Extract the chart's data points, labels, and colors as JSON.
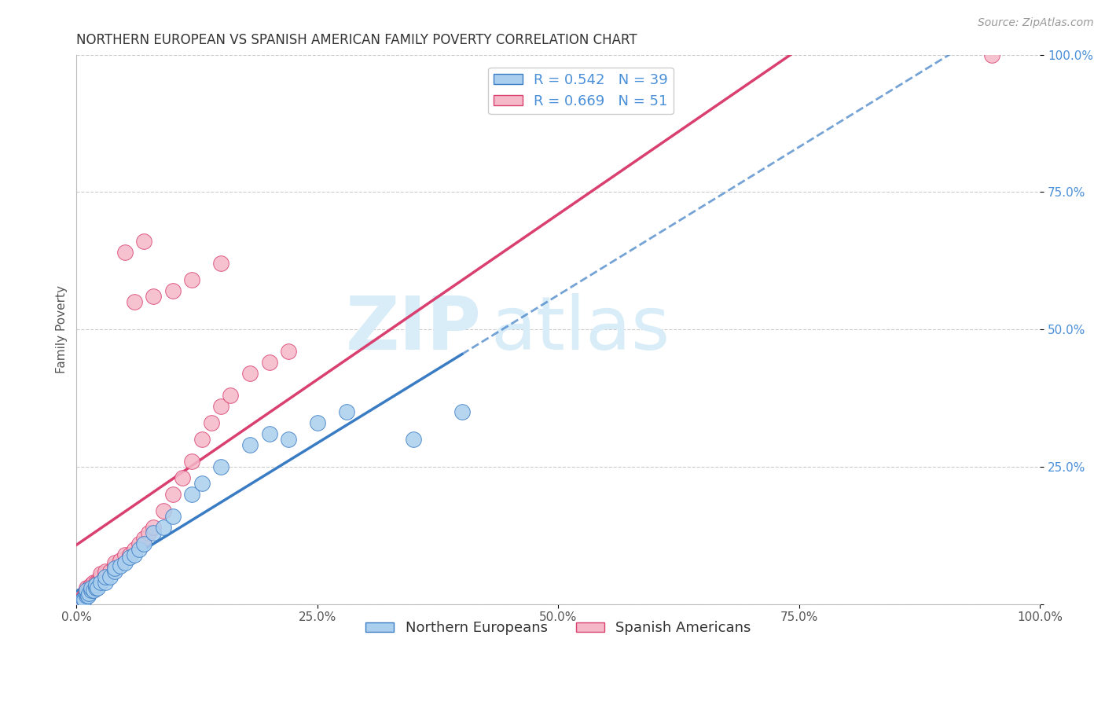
{
  "title": "NORTHERN EUROPEAN VS SPANISH AMERICAN FAMILY POVERTY CORRELATION CHART",
  "source": "Source: ZipAtlas.com",
  "ylabel": "Family Poverty",
  "legend_label_blue": "Northern Europeans",
  "legend_label_pink": "Spanish Americans",
  "R_blue": 0.542,
  "N_blue": 39,
  "R_pink": 0.669,
  "N_pink": 51,
  "color_blue": "#aacfee",
  "color_pink": "#f5b8c8",
  "line_color_blue": "#3a7cc4",
  "line_color_pink": "#d94070",
  "tick_color": "#4a90d9",
  "xlim": [
    0,
    1
  ],
  "ylim": [
    0,
    1
  ],
  "xticks": [
    0,
    0.25,
    0.5,
    0.75,
    1.0
  ],
  "yticks": [
    0,
    0.25,
    0.5,
    0.75,
    1.0
  ],
  "xticklabels": [
    "0.0%",
    "25.0%",
    "50.0%",
    "75.0%",
    "100.0%"
  ],
  "yticklabels": [
    "",
    "25.0%",
    "50.0%",
    "75.0%",
    "100.0%"
  ],
  "background_color": "#ffffff",
  "blue_points_x": [
    0.005,
    0.007,
    0.008,
    0.01,
    0.01,
    0.01,
    0.012,
    0.013,
    0.015,
    0.015,
    0.018,
    0.02,
    0.02,
    0.022,
    0.025,
    0.03,
    0.03,
    0.035,
    0.04,
    0.04,
    0.045,
    0.05,
    0.055,
    0.06,
    0.065,
    0.07,
    0.08,
    0.09,
    0.1,
    0.12,
    0.13,
    0.15,
    0.18,
    0.2,
    0.22,
    0.25,
    0.28,
    0.35,
    0.4
  ],
  "blue_points_y": [
    0.005,
    0.01,
    0.008,
    0.015,
    0.02,
    0.025,
    0.015,
    0.02,
    0.025,
    0.03,
    0.025,
    0.03,
    0.035,
    0.03,
    0.04,
    0.04,
    0.05,
    0.05,
    0.06,
    0.065,
    0.07,
    0.075,
    0.085,
    0.09,
    0.1,
    0.11,
    0.13,
    0.14,
    0.16,
    0.2,
    0.22,
    0.25,
    0.29,
    0.31,
    0.3,
    0.33,
    0.35,
    0.3,
    0.35
  ],
  "pink_points_x": [
    0.003,
    0.005,
    0.006,
    0.007,
    0.008,
    0.009,
    0.01,
    0.01,
    0.01,
    0.012,
    0.013,
    0.015,
    0.015,
    0.018,
    0.018,
    0.02,
    0.022,
    0.025,
    0.025,
    0.03,
    0.03,
    0.035,
    0.04,
    0.04,
    0.045,
    0.05,
    0.055,
    0.06,
    0.065,
    0.07,
    0.075,
    0.08,
    0.09,
    0.1,
    0.11,
    0.12,
    0.13,
    0.14,
    0.15,
    0.16,
    0.18,
    0.2,
    0.22,
    0.06,
    0.08,
    0.1,
    0.12,
    0.15,
    0.05,
    0.07,
    0.95
  ],
  "pink_points_y": [
    0.005,
    0.008,
    0.01,
    0.012,
    0.015,
    0.015,
    0.02,
    0.025,
    0.03,
    0.025,
    0.03,
    0.03,
    0.035,
    0.035,
    0.04,
    0.04,
    0.04,
    0.05,
    0.055,
    0.055,
    0.06,
    0.06,
    0.07,
    0.075,
    0.08,
    0.09,
    0.09,
    0.1,
    0.11,
    0.12,
    0.13,
    0.14,
    0.17,
    0.2,
    0.23,
    0.26,
    0.3,
    0.33,
    0.36,
    0.38,
    0.42,
    0.44,
    0.46,
    0.55,
    0.56,
    0.57,
    0.59,
    0.62,
    0.64,
    0.66,
    1.0
  ],
  "title_fontsize": 12,
  "axis_label_fontsize": 11,
  "tick_fontsize": 11,
  "legend_fontsize": 13,
  "source_fontsize": 10,
  "watermark_color": "#d8edf8",
  "watermark_zip_fontsize": 68,
  "watermark_atlas_fontsize": 68
}
